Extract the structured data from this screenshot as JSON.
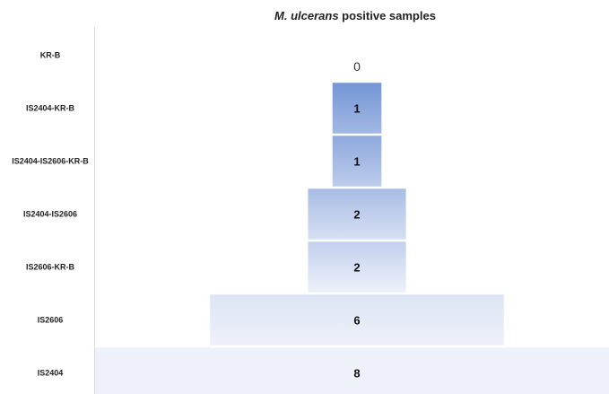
{
  "chart_data": {
    "type": "bar",
    "orientation": "horizontal",
    "style": "funnel (centered bars)",
    "title_italic": "M. ulcerans",
    "title_rest": " positive samples",
    "categories": [
      "KR-B",
      "IS2404-KR-B",
      "IS2404-IS2606-KR-B",
      "IS2404-IS2606",
      "IS2606-KR-B",
      "IS2606",
      "IS2404"
    ],
    "values": [
      0,
      1,
      1,
      2,
      2,
      6,
      8
    ],
    "value_labels": [
      "0",
      "1",
      "1",
      "2",
      "2",
      "6",
      "8"
    ],
    "xlim": [
      0,
      8
    ],
    "grid": false,
    "legend": "none",
    "colors": {
      "dark_bar": "#4a76c9",
      "light_bar": "#eef1fa",
      "divider": "#d6d6d6"
    }
  }
}
